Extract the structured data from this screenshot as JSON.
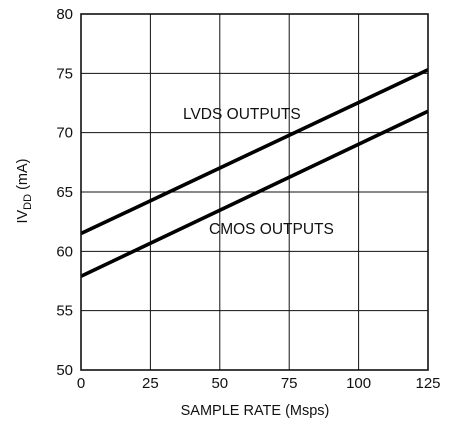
{
  "chart_data": {
    "type": "line",
    "xlabel": "SAMPLE RATE (Msps)",
    "ylabel": {
      "main": "IV",
      "sub": "DD",
      "unit": " (mA)"
    },
    "xlim": [
      0,
      125
    ],
    "ylim": [
      50,
      80
    ],
    "x_ticks": [
      0,
      25,
      50,
      75,
      100,
      125
    ],
    "y_ticks": [
      50,
      55,
      60,
      65,
      70,
      75,
      80
    ],
    "grid": true,
    "series": [
      {
        "name": "LVDS OUTPUTS",
        "x": [
          0,
          125
        ],
        "y": [
          61.5,
          75.3
        ]
      },
      {
        "name": "CMOS OUTPUTS",
        "x": [
          0,
          125
        ],
        "y": [
          57.9,
          71.8
        ]
      }
    ]
  }
}
